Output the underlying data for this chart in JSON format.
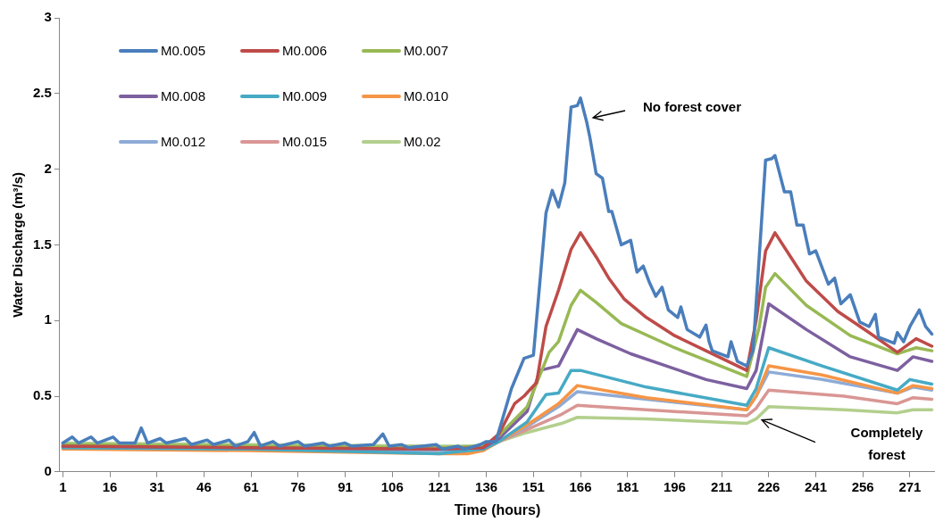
{
  "chart_data": {
    "type": "line",
    "xlabel": "Time (hours)",
    "ylabel": "Water Discharge (m³/s)",
    "xlim": [
      0,
      279
    ],
    "xticks": [
      1,
      16,
      31,
      46,
      61,
      76,
      91,
      106,
      121,
      136,
      151,
      166,
      181,
      196,
      211,
      226,
      241,
      256,
      271
    ],
    "ylim": [
      0,
      3
    ],
    "yticks": [
      0,
      0.5,
      1,
      1.5,
      2,
      2.5,
      3
    ],
    "grid": false,
    "legend": "top left",
    "annotations": [
      "No forest cover",
      "Completely forest"
    ],
    "series": [
      {
        "name": "M0.005",
        "color": "#4a7ebb",
        "x": [
          1,
          4,
          6,
          10,
          12,
          17,
          19,
          24,
          26,
          28,
          32,
          34,
          40,
          42,
          47,
          49,
          54,
          56,
          60,
          62,
          64,
          68,
          70,
          76,
          78,
          84,
          86,
          91,
          93,
          100,
          103,
          105,
          109,
          111,
          120,
          122,
          127,
          129,
          134,
          136,
          139,
          144,
          148,
          151,
          155,
          157,
          159,
          161,
          163,
          165,
          166,
          168,
          169,
          171,
          173,
          175,
          176,
          179,
          182,
          184,
          186,
          188,
          190,
          192,
          194,
          197,
          198,
          200,
          204,
          206,
          207,
          208,
          213,
          214,
          216,
          219,
          221,
          225,
          227,
          228,
          231,
          233,
          235,
          237,
          239,
          241,
          245,
          247,
          249,
          252,
          255,
          258,
          260,
          261,
          266,
          267,
          269,
          271,
          274,
          276,
          278
        ],
        "values": [
          0.19,
          0.23,
          0.19,
          0.23,
          0.19,
          0.23,
          0.19,
          0.19,
          0.29,
          0.19,
          0.22,
          0.19,
          0.22,
          0.18,
          0.21,
          0.18,
          0.21,
          0.17,
          0.2,
          0.26,
          0.17,
          0.2,
          0.17,
          0.2,
          0.17,
          0.19,
          0.17,
          0.19,
          0.17,
          0.18,
          0.25,
          0.17,
          0.18,
          0.16,
          0.18,
          0.15,
          0.17,
          0.15,
          0.18,
          0.2,
          0.2,
          0.55,
          0.75,
          0.77,
          1.71,
          1.86,
          1.75,
          1.91,
          2.41,
          2.42,
          2.47,
          2.31,
          2.21,
          1.97,
          1.94,
          1.72,
          1.72,
          1.5,
          1.53,
          1.32,
          1.36,
          1.25,
          1.16,
          1.22,
          1.07,
          1.02,
          1.09,
          0.94,
          0.89,
          0.97,
          0.86,
          0.8,
          0.76,
          0.86,
          0.73,
          0.7,
          0.8,
          2.06,
          2.07,
          2.09,
          1.85,
          1.85,
          1.63,
          1.63,
          1.44,
          1.46,
          1.24,
          1.28,
          1.11,
          1.17,
          0.99,
          0.96,
          1.04,
          0.89,
          0.85,
          0.92,
          0.86,
          0.96,
          1.07,
          0.96,
          0.91
        ]
      },
      {
        "name": "M0.006",
        "color": "#be4b48",
        "x": [
          1,
          60,
          120,
          135,
          140,
          145,
          148,
          152,
          155,
          159,
          163,
          166,
          171,
          175,
          180,
          187,
          196,
          206,
          219,
          222,
          225,
          228,
          233,
          238,
          248,
          258,
          267,
          273,
          278
        ],
        "values": [
          0.17,
          0.16,
          0.15,
          0.16,
          0.25,
          0.45,
          0.5,
          0.59,
          0.96,
          1.2,
          1.47,
          1.58,
          1.42,
          1.28,
          1.14,
          1.02,
          0.9,
          0.8,
          0.67,
          1.0,
          1.46,
          1.58,
          1.42,
          1.26,
          1.06,
          0.92,
          0.79,
          0.88,
          0.83
        ]
      },
      {
        "name": "M0.007",
        "color": "#98b954",
        "x": [
          1,
          60,
          120,
          135,
          140,
          149,
          156,
          159,
          163,
          166,
          171,
          179,
          196,
          219,
          223,
          225,
          228,
          238,
          252,
          267,
          273,
          278
        ],
        "values": [
          0.18,
          0.17,
          0.16,
          0.17,
          0.24,
          0.43,
          0.79,
          0.86,
          1.1,
          1.2,
          1.12,
          0.98,
          0.82,
          0.63,
          0.96,
          1.22,
          1.31,
          1.1,
          0.9,
          0.78,
          0.82,
          0.8
        ]
      },
      {
        "name": "M0.008",
        "color": "#7d60a0",
        "x": [
          1,
          60,
          120,
          135,
          140,
          149,
          153,
          159,
          165,
          171,
          182,
          206,
          219,
          222,
          226,
          238,
          252,
          267,
          272,
          278
        ],
        "values": [
          0.17,
          0.16,
          0.15,
          0.16,
          0.22,
          0.4,
          0.67,
          0.7,
          0.94,
          0.88,
          0.78,
          0.61,
          0.55,
          0.67,
          1.11,
          0.94,
          0.76,
          0.67,
          0.76,
          0.73
        ]
      },
      {
        "name": "M0.009",
        "color": "#46aac5",
        "x": [
          1,
          60,
          121,
          135,
          140,
          149,
          155,
          159,
          163,
          166,
          187,
          219,
          222,
          226,
          243,
          267,
          271,
          278
        ],
        "values": [
          0.16,
          0.15,
          0.12,
          0.15,
          0.2,
          0.33,
          0.51,
          0.52,
          0.67,
          0.67,
          0.56,
          0.44,
          0.55,
          0.82,
          0.7,
          0.54,
          0.61,
          0.58
        ]
      },
      {
        "name": "M0.010",
        "color": "#f69546",
        "x": [
          1,
          60,
          121,
          130,
          135,
          140,
          149,
          159,
          165,
          187,
          219,
          222,
          226,
          243,
          267,
          272,
          278
        ],
        "values": [
          0.15,
          0.14,
          0.12,
          0.12,
          0.14,
          0.2,
          0.31,
          0.45,
          0.57,
          0.49,
          0.41,
          0.5,
          0.7,
          0.64,
          0.52,
          0.57,
          0.55
        ]
      },
      {
        "name": "M0.012",
        "color": "#8eabd7",
        "x": [
          1,
          121,
          135,
          140,
          149,
          159,
          165,
          187,
          219,
          222,
          226,
          243,
          267,
          272,
          278
        ],
        "values": [
          0.16,
          0.14,
          0.15,
          0.2,
          0.3,
          0.43,
          0.53,
          0.48,
          0.41,
          0.5,
          0.66,
          0.61,
          0.52,
          0.56,
          0.54
        ]
      },
      {
        "name": "M0.015",
        "color": "#d99694",
        "x": [
          1,
          60,
          121,
          135,
          140,
          149,
          160,
          165,
          187,
          219,
          222,
          226,
          250,
          267,
          272,
          278
        ],
        "values": [
          0.17,
          0.16,
          0.15,
          0.16,
          0.2,
          0.28,
          0.38,
          0.44,
          0.41,
          0.37,
          0.42,
          0.54,
          0.5,
          0.45,
          0.49,
          0.48
        ]
      },
      {
        "name": "M0.02",
        "color": "#b3cf8d",
        "x": [
          1,
          60,
          121,
          135,
          140,
          149,
          160,
          165,
          187,
          219,
          222,
          226,
          250,
          267,
          272,
          278
        ],
        "values": [
          0.19,
          0.18,
          0.17,
          0.17,
          0.2,
          0.26,
          0.32,
          0.36,
          0.35,
          0.32,
          0.35,
          0.43,
          0.41,
          0.39,
          0.41,
          0.41
        ]
      }
    ]
  }
}
